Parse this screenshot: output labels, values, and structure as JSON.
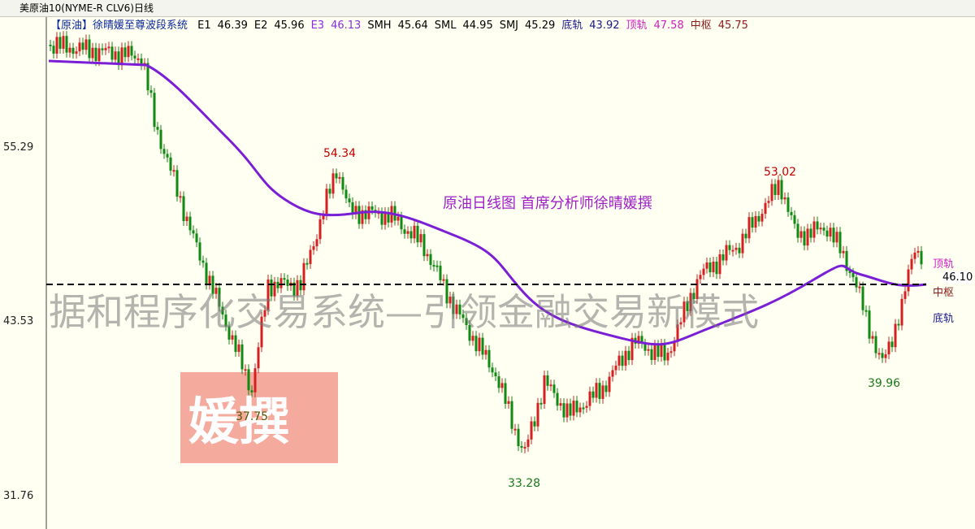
{
  "title_bar": {
    "title": "美原油10(NYME-R CLV6)日线"
  },
  "indicator_bar": {
    "name": "【原油】徐晴媛至尊波段系统",
    "items": [
      {
        "label": "E1",
        "value": "46.39"
      },
      {
        "label": "E2",
        "value": "45.96"
      },
      {
        "label": "E3",
        "value": "46.13"
      },
      {
        "label": "SMH",
        "value": "45.64"
      },
      {
        "label": "SML",
        "value": "44.95"
      },
      {
        "label": "SMJ",
        "value": "45.29"
      },
      {
        "label": "底轨",
        "value": "43.92"
      },
      {
        "label": "顶轨",
        "value": "47.58"
      },
      {
        "label": "中枢",
        "value": "45.75"
      }
    ]
  },
  "y_axis": {
    "ticks": [
      "55.29",
      "43.53",
      "31.76"
    ]
  },
  "chart": {
    "caption": "原油日线图  首席分析师徐晴媛撰",
    "price_labels": [
      "54.34",
      "53.02",
      "37.75",
      "33.28",
      "39.96"
    ],
    "current_price": "46.10",
    "band_labels": [
      "顶轨",
      "中枢",
      "底轨"
    ],
    "watermark": "据和程序化交易系统—引领金融交易新模式",
    "stamp": "媛撰"
  }
}
